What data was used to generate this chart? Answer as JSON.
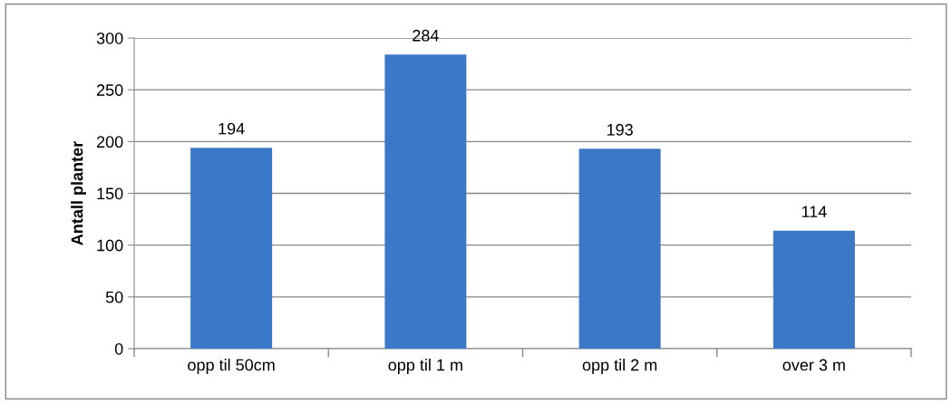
{
  "chart_data": {
    "type": "bar",
    "ylabel": "Antall planter",
    "categories": [
      "opp til 50cm",
      "opp til 1 m",
      "opp til 2 m",
      "over 3 m"
    ],
    "values": [
      194,
      284,
      193,
      114
    ],
    "color": "#3b78c8",
    "ylim": [
      0,
      300
    ],
    "yticks": [
      0,
      50,
      100,
      150,
      200,
      250,
      300
    ],
    "grid": "y",
    "data_labels": true
  }
}
